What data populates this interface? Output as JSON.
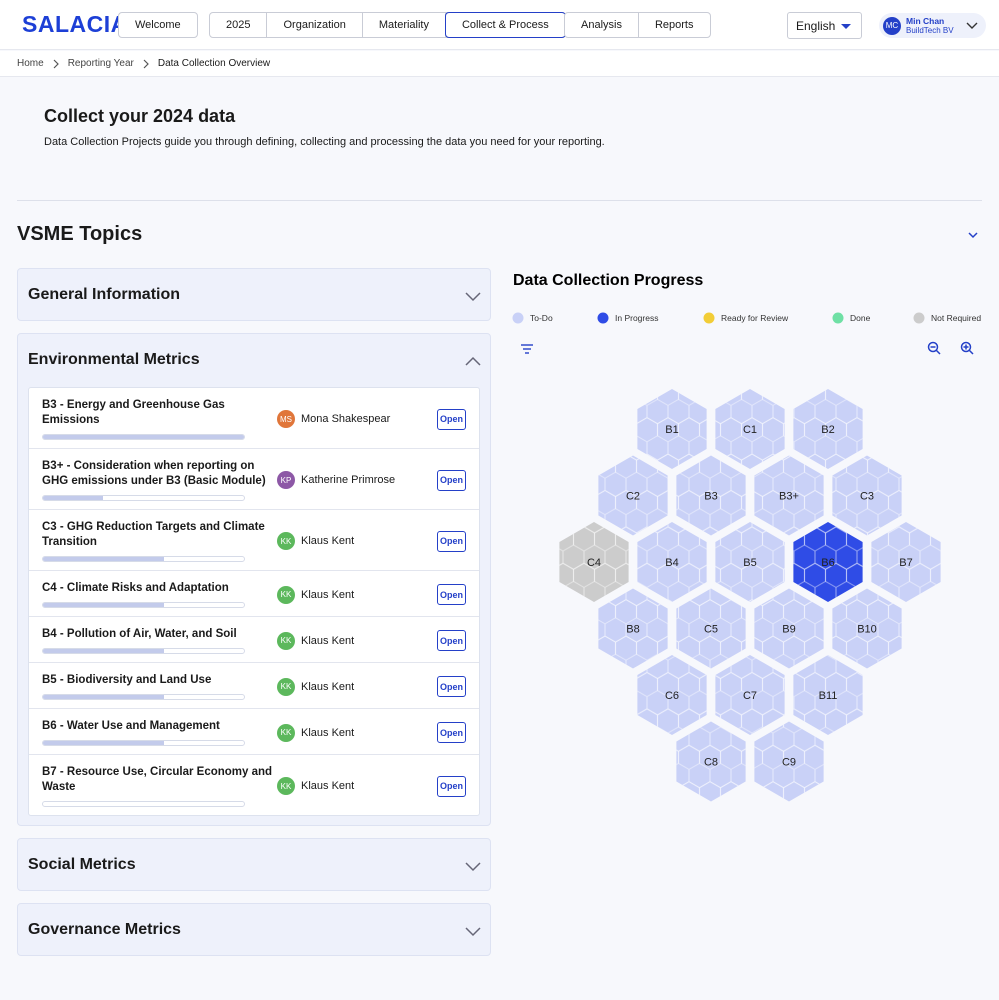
{
  "header": {
    "logo": "SALACIA",
    "nav": [
      [
        {
          "label": "Welcome"
        }
      ],
      [
        {
          "label": "2025"
        },
        {
          "label": "Organization"
        },
        {
          "label": "Materiality"
        },
        {
          "label": "Collect & Process",
          "active": true
        }
      ],
      [
        {
          "label": "Analysis"
        },
        {
          "label": "Reports"
        }
      ]
    ],
    "language": "English",
    "user": {
      "initials": "MC",
      "name": "Min Chan",
      "company": "BuildTech BV"
    }
  },
  "breadcrumb": [
    "Home",
    "Reporting Year",
    "Data Collection Overview"
  ],
  "intro": {
    "title": "Collect your 2024 data",
    "description": "Data Collection Projects guide you through defining, collecting and processing the data you need for your reporting."
  },
  "topics": {
    "title": "VSME Topics",
    "sections": [
      {
        "title": "General Information",
        "expanded": false
      },
      {
        "title": "Environmental Metrics",
        "expanded": true,
        "items": [
          {
            "title": "B3 - Energy and Greenhouse Gas Emissions",
            "assignee": {
              "initials": "MS",
              "name": "Mona Shakespear",
              "color": "#e0763a"
            },
            "progress": 100,
            "action": "Open"
          },
          {
            "title": "B3+ - Consideration when reporting on GHG emissions under B3 (Basic Module)",
            "assignee": {
              "initials": "KP",
              "name": "Katherine Primrose",
              "color": "#8d58a6"
            },
            "progress": 30,
            "action": "Open"
          },
          {
            "title": "C3 - GHG Reduction Targets and Climate Transition",
            "assignee": {
              "initials": "KK",
              "name": "Klaus Kent",
              "color": "#5cb85c"
            },
            "progress": 60,
            "action": "Open"
          },
          {
            "title": "C4 - Climate Risks and Adaptation",
            "assignee": {
              "initials": "KK",
              "name": "Klaus Kent",
              "color": "#5cb85c"
            },
            "progress": 60,
            "action": "Open"
          },
          {
            "title": "B4 - Pollution of Air, Water, and Soil",
            "assignee": {
              "initials": "KK",
              "name": "Klaus Kent",
              "color": "#5cb85c"
            },
            "progress": 60,
            "action": "Open"
          },
          {
            "title": "B5 - Biodiversity and Land Use",
            "assignee": {
              "initials": "KK",
              "name": "Klaus Kent",
              "color": "#5cb85c"
            },
            "progress": 60,
            "action": "Open"
          },
          {
            "title": "B6 - Water Use and Management",
            "assignee": {
              "initials": "KK",
              "name": "Klaus Kent",
              "color": "#5cb85c"
            },
            "progress": 60,
            "action": "Open"
          },
          {
            "title": "B7 - Resource Use, Circular Economy and Waste",
            "assignee": {
              "initials": "KK",
              "name": "Klaus Kent",
              "color": "#5cb85c"
            },
            "progress": 0,
            "action": "Open"
          }
        ]
      },
      {
        "title": "Social Metrics",
        "expanded": false
      },
      {
        "title": "Governance Metrics",
        "expanded": false
      }
    ]
  },
  "progress": {
    "title": "Data Collection Progress",
    "legend": [
      {
        "label": "To-Do",
        "color": "#c9d1f7"
      },
      {
        "label": "In Progress",
        "color": "#2f4ce6"
      },
      {
        "label": "Ready for Review",
        "color": "#f2cd37"
      },
      {
        "label": "Done",
        "color": "#6fe0a5"
      },
      {
        "label": "Not Required",
        "color": "#cccccc"
      }
    ],
    "cells": [
      {
        "label": "B1",
        "status": "To-Do"
      },
      {
        "label": "C1",
        "status": "To-Do"
      },
      {
        "label": "B2",
        "status": "To-Do"
      },
      {
        "label": "C2",
        "status": "To-Do"
      },
      {
        "label": "B3",
        "status": "To-Do"
      },
      {
        "label": "B3+",
        "status": "To-Do"
      },
      {
        "label": "C3",
        "status": "To-Do"
      },
      {
        "label": "C4",
        "status": "Not Required"
      },
      {
        "label": "B4",
        "status": "To-Do"
      },
      {
        "label": "B5",
        "status": "To-Do"
      },
      {
        "label": "B6",
        "status": "In Progress"
      },
      {
        "label": "B7",
        "status": "To-Do"
      },
      {
        "label": "B8",
        "status": "To-Do"
      },
      {
        "label": "C5",
        "status": "To-Do"
      },
      {
        "label": "B9",
        "status": "To-Do"
      },
      {
        "label": "B10",
        "status": "To-Do"
      },
      {
        "label": "C6",
        "status": "To-Do"
      },
      {
        "label": "C7",
        "status": "To-Do"
      },
      {
        "label": "B11",
        "status": "To-Do"
      },
      {
        "label": "C8",
        "status": "To-Do"
      },
      {
        "label": "C9",
        "status": "To-Do"
      }
    ]
  }
}
